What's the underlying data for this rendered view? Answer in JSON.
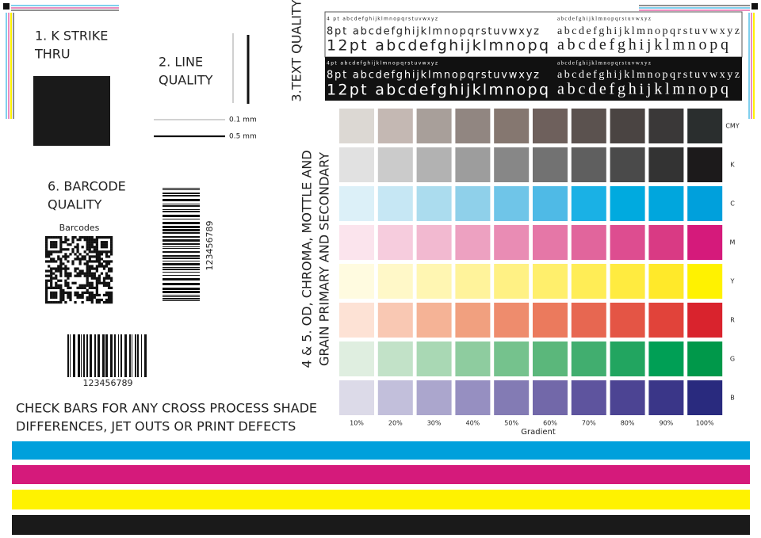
{
  "k_strike": {
    "title_lines": [
      "1. K STRIKE",
      "THRU"
    ]
  },
  "line_quality": {
    "title_lines": [
      "2. LINE",
      "QUALITY"
    ],
    "thin_label": "0.1 mm",
    "thick_label": "0.5 mm"
  },
  "text_quality": {
    "title": "3.TEXT QUALITY",
    "white_rows": [
      [
        "4 pt abcdefghijklmnopqrstuvwxyz",
        "abcdefghijklmnopqrstuvwxyz"
      ],
      [
        "8pt abcdefghijklmnopqrstuvwxyz",
        "abcdefghijklmnopqrstuvwxyz"
      ],
      [
        "12pt abcdefghijklmnopq",
        "abcdefghijklmnopq"
      ]
    ],
    "black_rows": [
      [
        "4pt abcdefghijklmnopqrstuvwxyz",
        "abcdefghijklmnopqrstuvwxyz"
      ],
      [
        "8pt abcdefghijklmnopqrstuvwxyz",
        "abcdefghijklmnopqrstuvwxyz"
      ],
      [
        "12pt abcdefghijklmnopq",
        "abcdefghijklmnopq"
      ]
    ]
  },
  "barcode_quality": {
    "title_lines": [
      "6. BARCODE",
      "QUALITY"
    ],
    "qr_caption": "Barcodes",
    "vertical_code": "123456789",
    "horizontal_code": "123456789"
  },
  "swatches": {
    "title_lines": [
      "4 & 5. OD, CHROMA, MOTTLE AND",
      "GRAIN PRIMARY AND SECONDARY"
    ],
    "columns": [
      "10%",
      "20%",
      "30%",
      "40%",
      "50%",
      "60%",
      "70%",
      "80%",
      "90%",
      "100%"
    ],
    "axis_label": "Gradient",
    "rows": [
      {
        "label": "CMY",
        "colors": [
          "#dcd8d3",
          "#c4b8b3",
          "#a89f9a",
          "#918681",
          "#857770",
          "#6e605c",
          "#5b524f",
          "#4a4442",
          "#3a3838",
          "#2a2e2e"
        ]
      },
      {
        "label": "K",
        "colors": [
          "#e1e1e1",
          "#cbcbcb",
          "#b2b2b2",
          "#9d9d9d",
          "#878787",
          "#727272",
          "#5f5f5f",
          "#4a4a4a",
          "#333333",
          "#1c1a1b"
        ]
      },
      {
        "label": "C",
        "colors": [
          "#dcf0f8",
          "#c6e7f4",
          "#abdcee",
          "#8fd0ea",
          "#6fc5e8",
          "#4fbae6",
          "#1ab1e5",
          "#00aadf",
          "#00a6dd",
          "#00a0dc"
        ]
      },
      {
        "label": "M",
        "colors": [
          "#fbe4ed",
          "#f6ccdd",
          "#f2b9d0",
          "#eda1c1",
          "#e98cb4",
          "#e577a7",
          "#e1659c",
          "#dd4d90",
          "#d93a84",
          "#d51a7b"
        ]
      },
      {
        "label": "Y",
        "colors": [
          "#fffbe0",
          "#fff8c8",
          "#fff6b2",
          "#fff39b",
          "#fff184",
          "#ffef6c",
          "#ffed56",
          "#ffeb40",
          "#ffe92a",
          "#fff200"
        ]
      },
      {
        "label": "R",
        "colors": [
          "#fde2d5",
          "#f9c8b3",
          "#f5b396",
          "#f1a07f",
          "#ee8c6d",
          "#eb7a5d",
          "#e76751",
          "#e45545",
          "#e1433a",
          "#d9232d"
        ]
      },
      {
        "label": "G",
        "colors": [
          "#dfeee0",
          "#c2e2c8",
          "#a9d8b4",
          "#8ecc9f",
          "#75c28d",
          "#5bb77b",
          "#41ae6f",
          "#22a560",
          "#009f55",
          "#00984a"
        ]
      },
      {
        "label": "B",
        "colors": [
          "#dcdae8",
          "#c2bfdb",
          "#aba6cd",
          "#968fc1",
          "#837bb4",
          "#7268a9",
          "#5e549e",
          "#4c4493",
          "#3a3688",
          "#292a7e"
        ]
      }
    ]
  },
  "check_bars": {
    "text_lines": [
      "CHECK BARS FOR ANY CROSS PROCESS SHADE",
      "DIFFERENCES, JET OUTS OR PRINT DEFECTS"
    ]
  }
}
